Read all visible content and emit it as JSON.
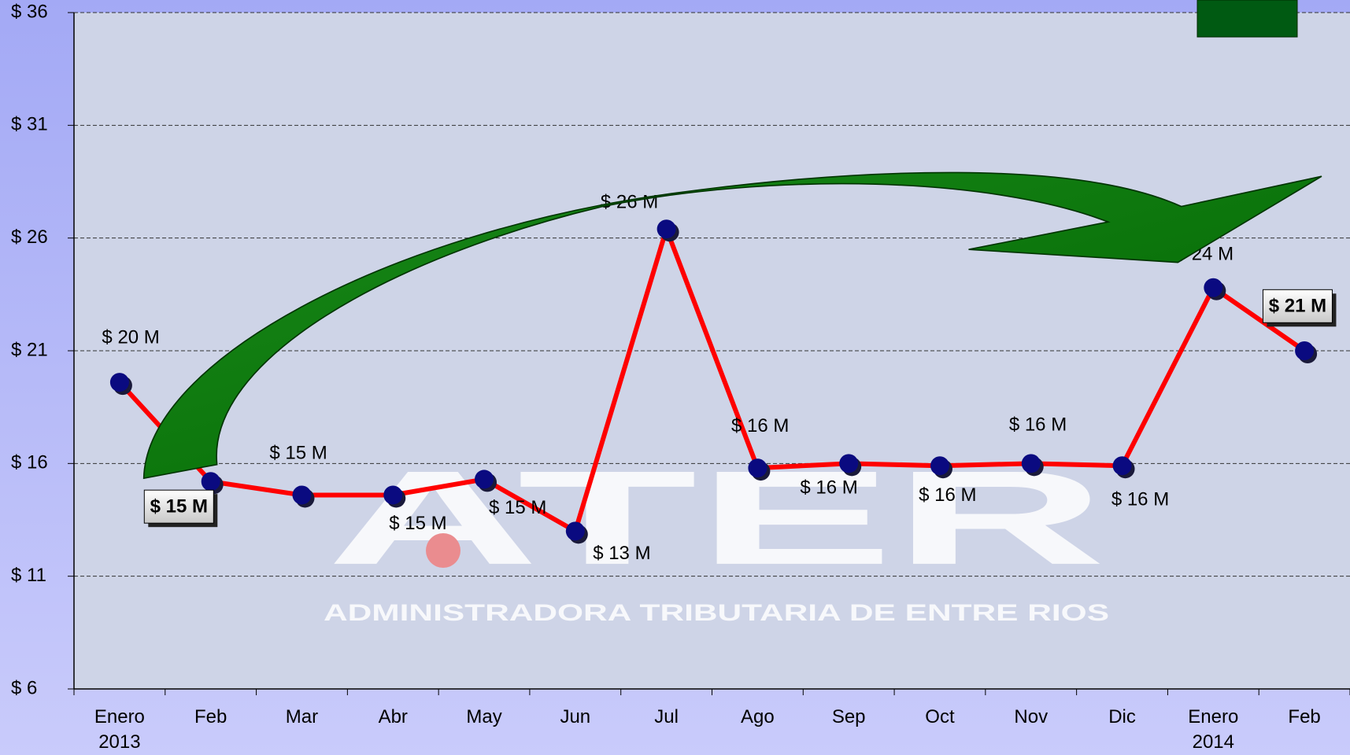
{
  "chart_data": {
    "type": "line",
    "categories": [
      "Enero\n2013",
      "Feb",
      "Mar",
      "Abr",
      "May",
      "Jun",
      "Jul",
      "Ago",
      "Sep",
      "Oct",
      "Nov",
      "Dic",
      "Enero\n2014",
      "Feb"
    ],
    "values": [
      19.6,
      15.2,
      14.6,
      14.6,
      15.3,
      13.0,
      26.4,
      15.8,
      16.0,
      15.9,
      16.0,
      15.9,
      23.8,
      21.0
    ],
    "value_labels": [
      "$ 20 M",
      "$ 15 M",
      "$ 15 M",
      "$ 15 M",
      "$ 15 M",
      "$ 13 M",
      "$ 26 M",
      "$ 16 M",
      "$ 16 M",
      "$ 16 M",
      "$ 16 M",
      "$ 16 M",
      "$ 24 M",
      "$ 21 M"
    ],
    "color": "#ff0000",
    "marker_color": "#0a0a80",
    "ylim": [
      6,
      36
    ],
    "yticks": [
      {
        "value": 6,
        "label": "$ 6"
      },
      {
        "value": 11,
        "label": "$ 11"
      },
      {
        "value": 16,
        "label": "$ 16"
      },
      {
        "value": 21,
        "label": "$ 21"
      },
      {
        "value": 26,
        "label": "$ 26"
      },
      {
        "value": 31,
        "label": "$ 31"
      },
      {
        "value": 36,
        "label": "$ 36"
      }
    ],
    "grid": true
  },
  "watermark": {
    "logo": "ATER",
    "subtitle": "ADMINISTRADORA TRIBUTARIA DE ENTRE RIOS"
  }
}
